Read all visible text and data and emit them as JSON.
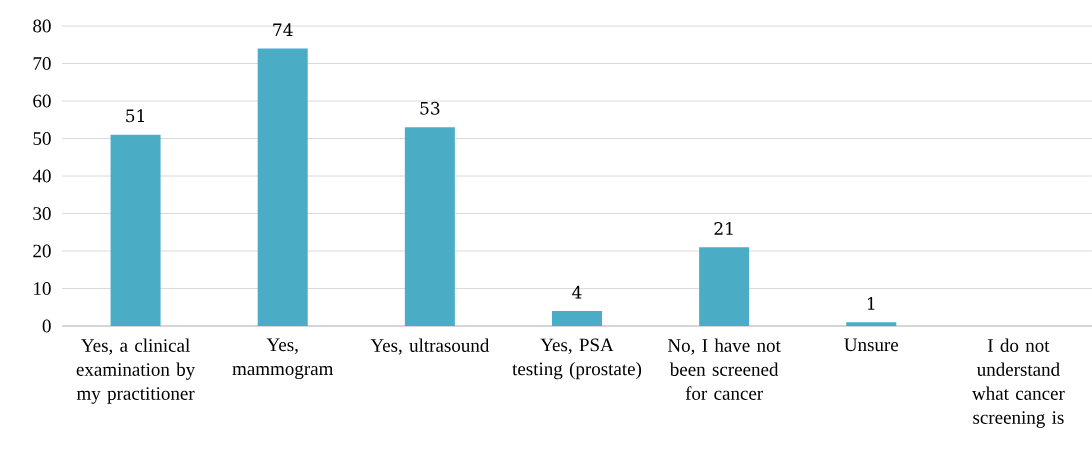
{
  "chart_data": {
    "type": "bar",
    "categories": [
      "Yes, a clinical examination by my practitioner",
      "Yes, mammogram",
      "Yes, ultrasound",
      "Yes, PSA testing (prostate)",
      "No, I have not been screened for cancer",
      "Unsure",
      "I do not understand what cancer screening is"
    ],
    "values": [
      51,
      74,
      53,
      4,
      21,
      1,
      0
    ],
    "value_labels": [
      "51",
      "74",
      "53",
      "4",
      "21",
      "1",
      null
    ],
    "color": "#4bacc6",
    "ylim": [
      0,
      80
    ],
    "yticks": [
      0,
      10,
      20,
      30,
      40,
      50,
      60,
      70,
      80
    ],
    "grid": "y"
  }
}
